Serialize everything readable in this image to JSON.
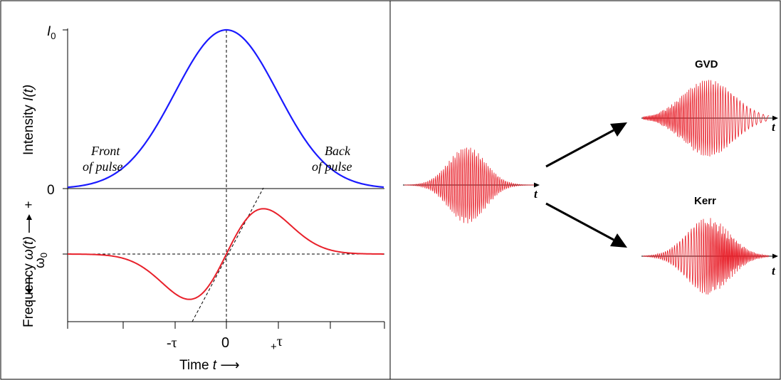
{
  "left_panel": {
    "intensity_axis": {
      "label_prefix": "Intensity ",
      "label_symbol": "I(t)",
      "tick_top_symbol": "I",
      "tick_top_subscript": "0",
      "tick_bottom": "0"
    },
    "frequency_axis": {
      "label_prefix": "Frequency ",
      "label_symbol": "ω(t)",
      "plus_label": "+",
      "minus_label": "-",
      "center_symbol": "ω",
      "center_subscript": "0"
    },
    "annotations": {
      "front_line1": "Front",
      "front_line2": "of pulse",
      "back_line1": "Back",
      "back_line2": "of pulse"
    },
    "time_axis": {
      "tick_minus_tau": "-τ",
      "tick_zero": "0",
      "tick_plus_prefix": "+",
      "tick_plus_symbol": "τ",
      "label_prefix": "Time ",
      "label_symbol": "t",
      "label_arrow": "⟶"
    },
    "colors": {
      "intensity_curve": "#1a1aff",
      "frequency_curve": "#e8202a"
    }
  },
  "right_panel": {
    "input_pulse": {
      "axis_label": "t"
    },
    "gvd_pulse": {
      "title": "GVD",
      "axis_label": "t"
    },
    "kerr_pulse": {
      "title": "Kerr",
      "axis_label": "t"
    },
    "colors": {
      "wave": "#e8202a",
      "arrow": "#000000"
    }
  }
}
